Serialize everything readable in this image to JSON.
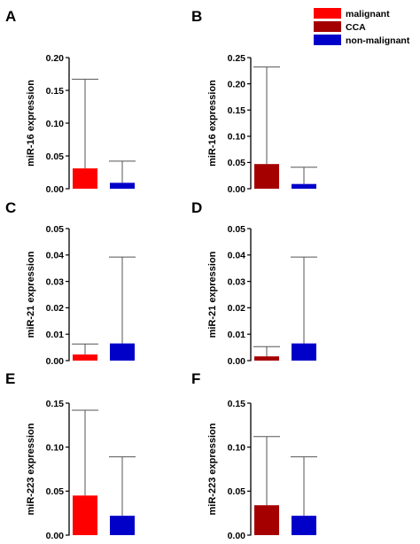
{
  "legend": [
    {
      "label": "malignant",
      "color": "#ff0000"
    },
    {
      "label": "CCA",
      "color": "#a50000"
    },
    {
      "label": "non-malignant",
      "color": "#0000c8"
    }
  ],
  "chart_data": [
    {
      "panel": "A",
      "type": "bar",
      "ylabel": "miR-16 expression",
      "ylim": [
        0,
        0.2
      ],
      "yticks": [
        "0.00",
        "0.05",
        "0.10",
        "0.15",
        "0.20"
      ],
      "tick_values": [
        0,
        0.05,
        0.1,
        0.15,
        0.2
      ],
      "series": [
        {
          "name": "malignant",
          "value": 0.031,
          "error_upper": 0.167
        },
        {
          "name": "non-malignant",
          "value": 0.009,
          "error_upper": 0.042
        }
      ]
    },
    {
      "panel": "B",
      "type": "bar",
      "ylabel": "miR-16 expression",
      "ylim": [
        0,
        0.25
      ],
      "yticks": [
        "0.00",
        "0.05",
        "0.10",
        "0.15",
        "0.20",
        "0.25"
      ],
      "tick_values": [
        0,
        0.05,
        0.1,
        0.15,
        0.2,
        0.25
      ],
      "series": [
        {
          "name": "CCA",
          "value": 0.047,
          "error_upper": 0.232
        },
        {
          "name": "non-malignant",
          "value": 0.009,
          "error_upper": 0.041
        }
      ]
    },
    {
      "panel": "C",
      "type": "bar",
      "ylabel": "miR-21 expression",
      "ylim": [
        0,
        0.05
      ],
      "yticks": [
        "0.00",
        "0.01",
        "0.02",
        "0.03",
        "0.04",
        "0.05"
      ],
      "tick_values": [
        0,
        0.01,
        0.02,
        0.03,
        0.04,
        0.05
      ],
      "series": [
        {
          "name": "malignant",
          "value": 0.0023,
          "error_upper": 0.0063
        },
        {
          "name": "non-malignant",
          "value": 0.0065,
          "error_upper": 0.0392
        }
      ]
    },
    {
      "panel": "D",
      "type": "bar",
      "ylabel": "miR-21 expression",
      "ylim": [
        0,
        0.05
      ],
      "yticks": [
        "0.00",
        "0.01",
        "0.02",
        "0.03",
        "0.04",
        "0.05"
      ],
      "tick_values": [
        0,
        0.01,
        0.02,
        0.03,
        0.04,
        0.05
      ],
      "series": [
        {
          "name": "CCA",
          "value": 0.0016,
          "error_upper": 0.0053
        },
        {
          "name": "non-malignant",
          "value": 0.0065,
          "error_upper": 0.0392
        }
      ]
    },
    {
      "panel": "E",
      "type": "bar",
      "ylabel": "miR-223 expression",
      "ylim": [
        0,
        0.15
      ],
      "yticks": [
        "0.00",
        "0.05",
        "0.10",
        "0.15"
      ],
      "tick_values": [
        0,
        0.05,
        0.1,
        0.15
      ],
      "series": [
        {
          "name": "malignant",
          "value": 0.045,
          "error_upper": 0.142
        },
        {
          "name": "non-malignant",
          "value": 0.022,
          "error_upper": 0.089
        }
      ]
    },
    {
      "panel": "F",
      "type": "bar",
      "ylabel": "miR-223 expression",
      "ylim": [
        0,
        0.15
      ],
      "yticks": [
        "0.00",
        "0.05",
        "0.10",
        "0.15"
      ],
      "tick_values": [
        0,
        0.05,
        0.1,
        0.15
      ],
      "series": [
        {
          "name": "CCA",
          "value": 0.034,
          "error_upper": 0.112
        },
        {
          "name": "non-malignant",
          "value": 0.022,
          "error_upper": 0.089
        }
      ]
    }
  ]
}
